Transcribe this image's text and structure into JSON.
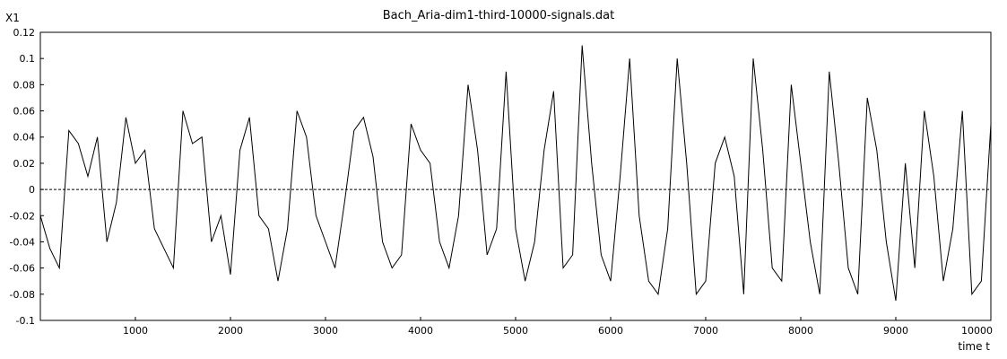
{
  "chart_data": {
    "type": "line",
    "title": "Bach_Aria-dim1-third-10000-signals.dat",
    "xlabel": "time t",
    "ylabel": "X1",
    "xlim": [
      0,
      10000
    ],
    "ylim": [
      -0.1,
      0.12
    ],
    "xticks": [
      1000,
      2000,
      3000,
      4000,
      5000,
      6000,
      7000,
      8000,
      9000,
      10000
    ],
    "xtick_labels": [
      "1000",
      "2000",
      "3000",
      "4000",
      "5000",
      "6000",
      "7000",
      "8000",
      "9000",
      "10000"
    ],
    "yticks": [
      -0.1,
      -0.08,
      -0.06,
      -0.04,
      -0.02,
      0,
      0.02,
      0.04,
      0.06,
      0.08,
      0.1,
      0.12
    ],
    "ytick_labels": [
      "-0.1",
      "-0.08",
      "-0.06",
      "-0.04",
      "-0.02",
      "0",
      "0.02",
      "0.04",
      "0.06",
      "0.08",
      "0.1",
      "0.12"
    ],
    "reference_line": {
      "y": 0,
      "style": "dashed"
    },
    "grid": false,
    "series": [
      {
        "color": "#000000",
        "x": [
          0,
          100,
          200,
          300,
          400,
          500,
          600,
          700,
          800,
          900,
          1000,
          1100,
          1200,
          1300,
          1400,
          1500,
          1600,
          1700,
          1800,
          1900,
          2000,
          2100,
          2200,
          2300,
          2400,
          2500,
          2600,
          2700,
          2800,
          2900,
          3000,
          3100,
          3200,
          3300,
          3400,
          3500,
          3600,
          3700,
          3800,
          3900,
          4000,
          4100,
          4200,
          4300,
          4400,
          4500,
          4600,
          4700,
          4800,
          4900,
          5000,
          5100,
          5200,
          5300,
          5400,
          5500,
          5600,
          5700,
          5800,
          5900,
          6000,
          6100,
          6200,
          6300,
          6400,
          6500,
          6600,
          6700,
          6800,
          6900,
          7000,
          7100,
          7200,
          7300,
          7400,
          7500,
          7600,
          7700,
          7800,
          7900,
          8000,
          8100,
          8200,
          8300,
          8400,
          8500,
          8600,
          8700,
          8800,
          8900,
          9000,
          9100,
          9200,
          9300,
          9400,
          9500,
          9600,
          9700,
          9800,
          9900,
          10000
        ],
        "y": [
          -0.02,
          -0.045,
          -0.06,
          0.045,
          0.035,
          0.01,
          0.04,
          -0.04,
          -0.01,
          0.055,
          0.02,
          0.03,
          -0.03,
          -0.045,
          -0.06,
          0.06,
          0.035,
          0.04,
          -0.04,
          -0.02,
          -0.065,
          0.03,
          0.055,
          -0.02,
          -0.03,
          -0.07,
          -0.03,
          0.06,
          0.04,
          -0.02,
          -0.04,
          -0.06,
          -0.01,
          0.045,
          0.055,
          0.025,
          -0.04,
          -0.06,
          -0.05,
          0.05,
          0.03,
          0.02,
          -0.04,
          -0.06,
          -0.02,
          0.08,
          0.03,
          -0.05,
          -0.03,
          0.09,
          -0.03,
          -0.07,
          -0.04,
          0.03,
          0.075,
          -0.06,
          -0.05,
          0.11,
          0.02,
          -0.05,
          -0.07,
          0.01,
          0.1,
          -0.02,
          -0.07,
          -0.08,
          -0.03,
          0.1,
          0.02,
          -0.08,
          -0.07,
          0.02,
          0.04,
          0.01,
          -0.08,
          0.1,
          0.03,
          -0.06,
          -0.07,
          0.08,
          0.02,
          -0.04,
          -0.08,
          0.09,
          0.02,
          -0.06,
          -0.08,
          0.07,
          0.03,
          -0.04,
          -0.085,
          0.02,
          -0.06,
          0.06,
          0.01,
          -0.07,
          -0.03,
          0.06,
          -0.08,
          -0.07,
          0.05
        ]
      }
    ]
  }
}
